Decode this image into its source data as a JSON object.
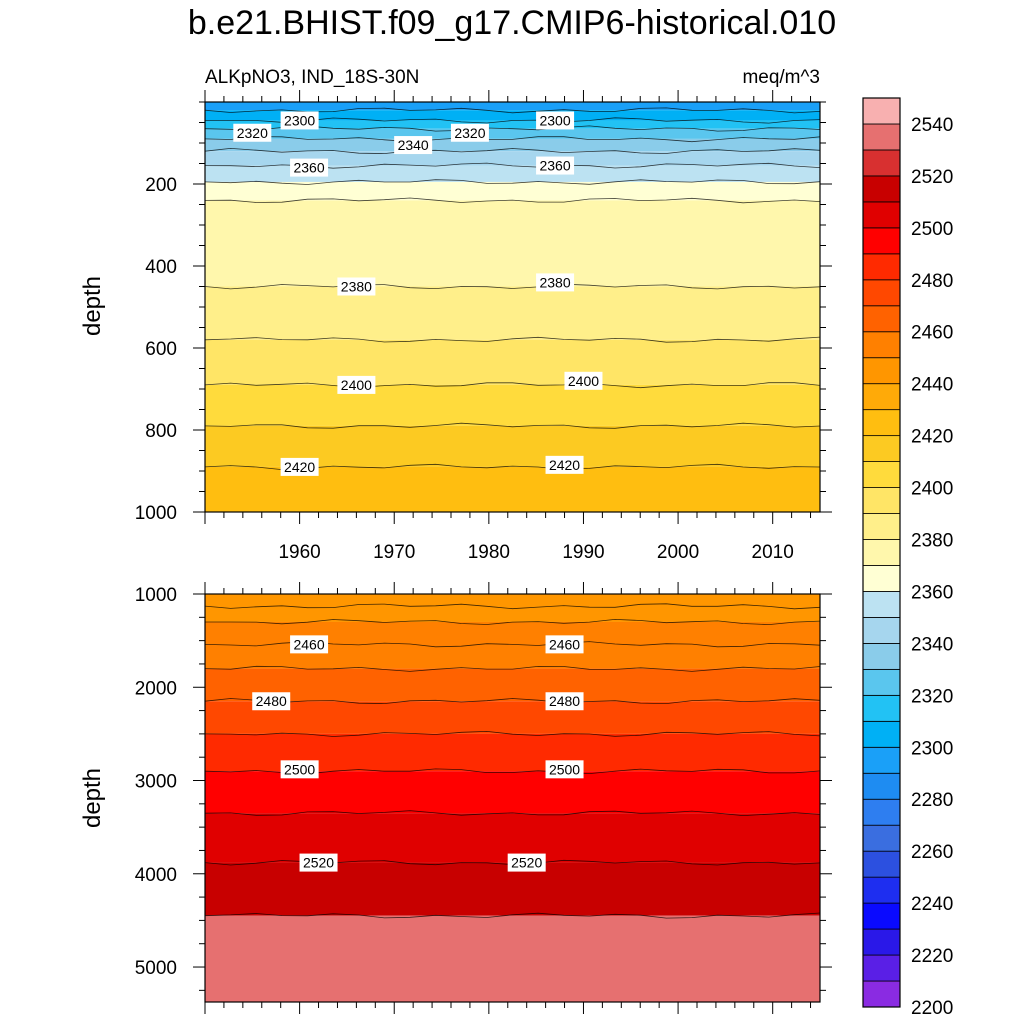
{
  "chart_data": {
    "title": "b.e21.BHIST.f09_g17.CMIP6-historical.010",
    "variable_label": "ALKpNO3, IND_18S-30N",
    "units_label": "meq/m^3",
    "type": "heatmap",
    "x": {
      "label": "",
      "range": [
        1950,
        2015
      ],
      "ticks": [
        1960,
        1970,
        1980,
        1990,
        2000,
        2010
      ],
      "tick_labels": [
        "1960",
        "1970",
        "1980",
        "1990",
        "2000",
        "2010"
      ]
    },
    "panels": [
      {
        "name": "upper",
        "ylabel": "depth",
        "ylim": [
          0,
          1000
        ],
        "y_ticks": [
          200,
          400,
          600,
          800,
          1000
        ],
        "y_tick_labels": [
          "200",
          "400",
          "600",
          "800",
          "1000"
        ],
        "bands": [
          {
            "top": 0,
            "bottom": 20,
            "value": 2290
          },
          {
            "top": 20,
            "bottom": 45,
            "value": 2300
          },
          {
            "top": 45,
            "bottom": 65,
            "value": 2310
          },
          {
            "top": 65,
            "bottom": 90,
            "value": 2320
          },
          {
            "top": 90,
            "bottom": 120,
            "value": 2330
          },
          {
            "top": 120,
            "bottom": 155,
            "value": 2340
          },
          {
            "top": 155,
            "bottom": 195,
            "value": 2350
          },
          {
            "top": 195,
            "bottom": 240,
            "value": 2360
          },
          {
            "top": 240,
            "bottom": 450,
            "value": 2370
          },
          {
            "top": 450,
            "bottom": 580,
            "value": 2380
          },
          {
            "top": 580,
            "bottom": 690,
            "value": 2390
          },
          {
            "top": 690,
            "bottom": 790,
            "value": 2400
          },
          {
            "top": 790,
            "bottom": 890,
            "value": 2410
          },
          {
            "top": 890,
            "bottom": 1000,
            "value": 2420
          }
        ],
        "contour_labels": [
          {
            "text": "2320",
            "x": 1955,
            "y": 75
          },
          {
            "text": "2300",
            "x": 1960,
            "y": 45
          },
          {
            "text": "2340",
            "x": 1972,
            "y": 105
          },
          {
            "text": "2320",
            "x": 1978,
            "y": 75
          },
          {
            "text": "2300",
            "x": 1987,
            "y": 45
          },
          {
            "text": "2360",
            "x": 1961,
            "y": 160
          },
          {
            "text": "2360",
            "x": 1987,
            "y": 155
          },
          {
            "text": "2380",
            "x": 1966,
            "y": 450
          },
          {
            "text": "2380",
            "x": 1987,
            "y": 440
          },
          {
            "text": "2400",
            "x": 1966,
            "y": 690
          },
          {
            "text": "2400",
            "x": 1990,
            "y": 680
          },
          {
            "text": "2420",
            "x": 1960,
            "y": 890
          },
          {
            "text": "2420",
            "x": 1988,
            "y": 885
          }
        ]
      },
      {
        "name": "lower",
        "ylabel": "depth",
        "ylim": [
          1000,
          5375
        ],
        "y_ticks": [
          1000,
          2000,
          3000,
          4000,
          5000
        ],
        "y_tick_labels": [
          "1000",
          "2000",
          "3000",
          "4000",
          "5000"
        ],
        "bands": [
          {
            "top": 1000,
            "bottom": 1300,
            "value": 2440
          },
          {
            "top": 1300,
            "bottom": 1800,
            "value": 2450
          },
          {
            "top": 1800,
            "bottom": 2150,
            "value": 2460
          },
          {
            "top": 2150,
            "bottom": 2500,
            "value": 2470
          },
          {
            "top": 2500,
            "bottom": 2900,
            "value": 2480
          },
          {
            "top": 2900,
            "bottom": 3350,
            "value": 2490
          },
          {
            "top": 3350,
            "bottom": 3880,
            "value": 2500
          },
          {
            "top": 3880,
            "bottom": 4450,
            "value": 2510
          },
          {
            "top": 4450,
            "bottom": 5375,
            "value": 2530
          }
        ],
        "contour_lines": [
          1130,
          1300,
          1540,
          1800,
          2150,
          2500,
          2900,
          3350,
          3880,
          4450
        ],
        "contour_labels": [
          {
            "text": "2460",
            "x": 1961,
            "y": 1540
          },
          {
            "text": "2460",
            "x": 1988,
            "y": 1540
          },
          {
            "text": "2480",
            "x": 1957,
            "y": 2150
          },
          {
            "text": "2480",
            "x": 1988,
            "y": 2150
          },
          {
            "text": "2500",
            "x": 1960,
            "y": 2880
          },
          {
            "text": "2500",
            "x": 1988,
            "y": 2880
          },
          {
            "text": "2520",
            "x": 1962,
            "y": 3880
          },
          {
            "text": "2520",
            "x": 1984,
            "y": 3880
          }
        ]
      }
    ],
    "colorbar": {
      "levels": [
        2200,
        2210,
        2220,
        2230,
        2240,
        2250,
        2260,
        2270,
        2280,
        2290,
        2300,
        2310,
        2320,
        2330,
        2340,
        2350,
        2360,
        2370,
        2380,
        2390,
        2400,
        2410,
        2420,
        2430,
        2440,
        2450,
        2460,
        2470,
        2480,
        2490,
        2500,
        2510,
        2520,
        2530,
        2540,
        2550
      ],
      "tick_labels": [
        "2200",
        "2220",
        "2240",
        "2260",
        "2280",
        "2300",
        "2320",
        "2340",
        "2360",
        "2380",
        "2400",
        "2420",
        "2440",
        "2460",
        "2480",
        "2500",
        "2520",
        "2540"
      ],
      "colors": [
        "#8a2be2",
        "#5a1fe6",
        "#2a18e8",
        "#0a0aff",
        "#1e2ef0",
        "#2c50e0",
        "#3a6ee0",
        "#2e7ef0",
        "#1e8cf2",
        "#1aa0f8",
        "#00b0f5",
        "#22c2f4",
        "#5ac6ee",
        "#8accea",
        "#a6d6ee",
        "#bce2f2",
        "#ffffd4",
        "#fff7ac",
        "#ffef8a",
        "#ffe566",
        "#ffdb3c",
        "#fcca22",
        "#ffbe10",
        "#ffaa08",
        "#ff9600",
        "#ff8000",
        "#ff6200",
        "#ff4800",
        "#ff2a00",
        "#ff0000",
        "#e00000",
        "#c80000",
        "#d83030",
        "#e67070",
        "#f8b0b0"
      ]
    }
  }
}
